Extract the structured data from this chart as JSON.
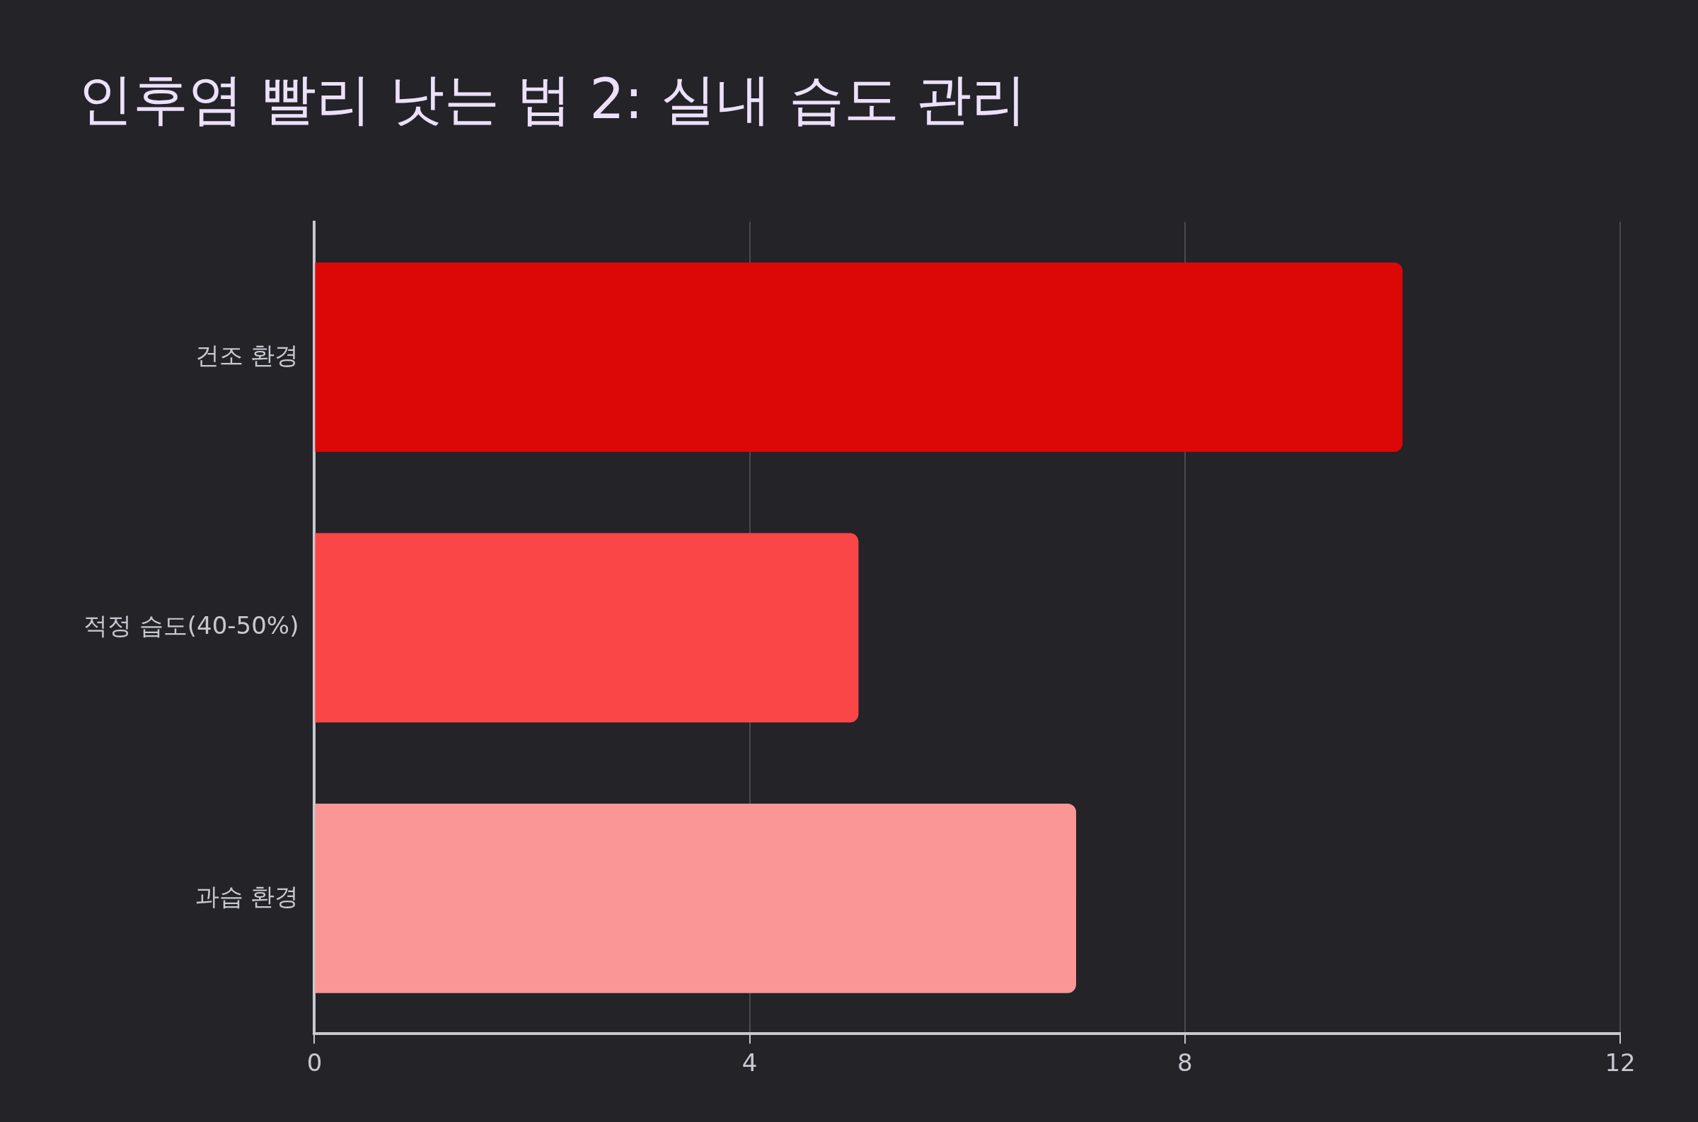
{
  "chart_data": {
    "type": "bar",
    "orientation": "horizontal",
    "title": "인후염 빨리 낫는 법 2: 실내 습도 관리",
    "categories": [
      "건조 환경",
      "적정 습도(40-50%)",
      "과습 환경"
    ],
    "values": [
      10,
      5,
      7
    ],
    "colors": [
      "#dc0808",
      "#fa4646",
      "#fa9696"
    ],
    "xlim": [
      0,
      12
    ],
    "xticks": [
      0,
      4,
      8,
      12
    ],
    "grid": "x",
    "legend": false
  }
}
